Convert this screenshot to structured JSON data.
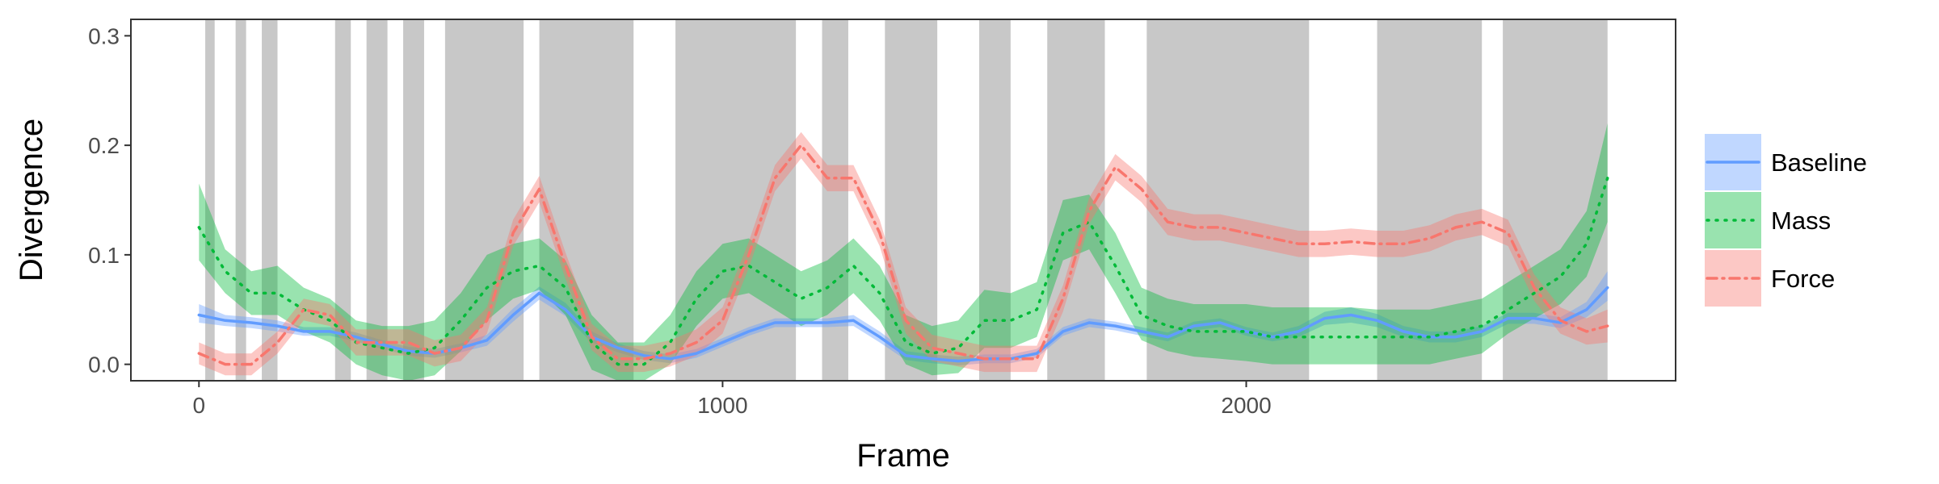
{
  "chart_data": {
    "type": "line",
    "xlabel": "Frame",
    "ylabel": "Divergence",
    "xlim": [
      -130,
      2820
    ],
    "ylim": [
      -0.015,
      0.315
    ],
    "x_ticks": [
      0,
      1000,
      2000
    ],
    "x_tick_labels": [
      "0",
      "1000",
      "2000"
    ],
    "y_ticks": [
      0.0,
      0.1,
      0.2,
      0.3
    ],
    "y_tick_labels": [
      "0.0",
      "0.1",
      "0.2",
      "0.3"
    ],
    "legend_position": "right",
    "shaded_regions": [
      [
        12,
        30
      ],
      [
        70,
        90
      ],
      [
        120,
        150
      ],
      [
        260,
        290
      ],
      [
        320,
        360
      ],
      [
        390,
        430
      ],
      [
        470,
        620
      ],
      [
        650,
        830
      ],
      [
        910,
        1140
      ],
      [
        1190,
        1240
      ],
      [
        1310,
        1410
      ],
      [
        1490,
        1550
      ],
      [
        1620,
        1730
      ],
      [
        1810,
        2120
      ],
      [
        2250,
        2450
      ],
      [
        2490,
        2690
      ]
    ],
    "series": [
      {
        "name": "Baseline",
        "color": "#619CFF",
        "dash": "solid",
        "x": [
          0,
          50,
          100,
          150,
          200,
          250,
          300,
          350,
          400,
          450,
          500,
          550,
          600,
          650,
          700,
          750,
          800,
          850,
          900,
          950,
          1000,
          1050,
          1100,
          1150,
          1200,
          1250,
          1300,
          1350,
          1400,
          1450,
          1500,
          1550,
          1600,
          1650,
          1700,
          1750,
          1800,
          1850,
          1900,
          1950,
          2000,
          2050,
          2100,
          2150,
          2200,
          2250,
          2300,
          2350,
          2400,
          2450,
          2500,
          2550,
          2600,
          2650,
          2690
        ],
        "y": [
          0.045,
          0.04,
          0.038,
          0.035,
          0.03,
          0.03,
          0.025,
          0.018,
          0.012,
          0.01,
          0.015,
          0.022,
          0.045,
          0.065,
          0.05,
          0.025,
          0.015,
          0.008,
          0.005,
          0.01,
          0.02,
          0.03,
          0.038,
          0.038,
          0.038,
          0.04,
          0.025,
          0.008,
          0.005,
          0.003,
          0.005,
          0.005,
          0.01,
          0.03,
          0.038,
          0.035,
          0.03,
          0.025,
          0.035,
          0.038,
          0.03,
          0.025,
          0.03,
          0.042,
          0.045,
          0.04,
          0.03,
          0.025,
          0.025,
          0.03,
          0.042,
          0.042,
          0.038,
          0.05,
          0.07
        ],
        "lower": [
          0.038,
          0.035,
          0.033,
          0.03,
          0.026,
          0.026,
          0.021,
          0.014,
          0.008,
          0.006,
          0.011,
          0.017,
          0.039,
          0.059,
          0.044,
          0.02,
          0.011,
          0.004,
          0.001,
          0.006,
          0.016,
          0.026,
          0.034,
          0.034,
          0.034,
          0.035,
          0.02,
          0.004,
          0.001,
          -0.001,
          0.001,
          0.001,
          0.006,
          0.026,
          0.034,
          0.031,
          0.026,
          0.021,
          0.031,
          0.034,
          0.026,
          0.021,
          0.025,
          0.036,
          0.038,
          0.034,
          0.025,
          0.02,
          0.02,
          0.025,
          0.037,
          0.037,
          0.033,
          0.043,
          0.058
        ],
        "upper": [
          0.055,
          0.045,
          0.043,
          0.04,
          0.034,
          0.034,
          0.029,
          0.022,
          0.016,
          0.014,
          0.019,
          0.027,
          0.051,
          0.071,
          0.056,
          0.03,
          0.019,
          0.012,
          0.009,
          0.014,
          0.024,
          0.034,
          0.042,
          0.042,
          0.042,
          0.045,
          0.03,
          0.012,
          0.009,
          0.007,
          0.009,
          0.009,
          0.014,
          0.034,
          0.042,
          0.039,
          0.034,
          0.029,
          0.039,
          0.042,
          0.034,
          0.029,
          0.035,
          0.048,
          0.052,
          0.046,
          0.035,
          0.03,
          0.03,
          0.035,
          0.047,
          0.047,
          0.043,
          0.057,
          0.085
        ]
      },
      {
        "name": "Mass",
        "color": "#00BA38",
        "dash": "dotted",
        "x": [
          0,
          50,
          100,
          150,
          200,
          250,
          300,
          350,
          400,
          450,
          500,
          550,
          600,
          650,
          700,
          750,
          800,
          850,
          900,
          950,
          1000,
          1050,
          1100,
          1150,
          1200,
          1250,
          1300,
          1350,
          1400,
          1450,
          1500,
          1550,
          1600,
          1650,
          1700,
          1750,
          1800,
          1850,
          1900,
          1950,
          2000,
          2050,
          2100,
          2150,
          2200,
          2250,
          2300,
          2350,
          2400,
          2450,
          2500,
          2550,
          2600,
          2650,
          2690
        ],
        "y": [
          0.125,
          0.085,
          0.065,
          0.065,
          0.05,
          0.04,
          0.02,
          0.015,
          0.01,
          0.015,
          0.04,
          0.07,
          0.085,
          0.09,
          0.07,
          0.02,
          0.0,
          0.0,
          0.02,
          0.06,
          0.085,
          0.09,
          0.075,
          0.06,
          0.07,
          0.09,
          0.065,
          0.02,
          0.01,
          0.015,
          0.04,
          0.04,
          0.05,
          0.12,
          0.13,
          0.09,
          0.045,
          0.035,
          0.03,
          0.03,
          0.03,
          0.025,
          0.025,
          0.025,
          0.025,
          0.025,
          0.025,
          0.025,
          0.03,
          0.035,
          0.05,
          0.065,
          0.08,
          0.11,
          0.17
        ],
        "lower": [
          0.095,
          0.065,
          0.045,
          0.045,
          0.03,
          0.02,
          0.0,
          -0.01,
          -0.015,
          -0.01,
          0.012,
          0.04,
          0.06,
          0.068,
          0.045,
          -0.005,
          -0.02,
          -0.02,
          0.0,
          0.035,
          0.06,
          0.065,
          0.05,
          0.035,
          0.045,
          0.065,
          0.04,
          0.0,
          -0.01,
          -0.008,
          0.015,
          0.015,
          0.025,
          0.095,
          0.105,
          0.065,
          0.022,
          0.012,
          0.007,
          0.005,
          0.003,
          0.0,
          0.0,
          0.0,
          0.0,
          0.0,
          0.0,
          0.0,
          0.005,
          0.01,
          0.028,
          0.042,
          0.055,
          0.08,
          0.13
        ],
        "upper": [
          0.165,
          0.105,
          0.085,
          0.09,
          0.07,
          0.06,
          0.04,
          0.035,
          0.035,
          0.04,
          0.065,
          0.1,
          0.11,
          0.115,
          0.095,
          0.045,
          0.02,
          0.02,
          0.045,
          0.085,
          0.11,
          0.115,
          0.1,
          0.085,
          0.095,
          0.115,
          0.09,
          0.045,
          0.035,
          0.04,
          0.068,
          0.065,
          0.075,
          0.15,
          0.155,
          0.12,
          0.07,
          0.06,
          0.055,
          0.055,
          0.055,
          0.052,
          0.052,
          0.052,
          0.052,
          0.05,
          0.05,
          0.05,
          0.055,
          0.06,
          0.075,
          0.09,
          0.105,
          0.14,
          0.22
        ]
      },
      {
        "name": "Force",
        "color": "#F8766D",
        "dash": "dashdot",
        "x": [
          0,
          50,
          100,
          150,
          200,
          250,
          300,
          350,
          400,
          450,
          500,
          550,
          600,
          650,
          700,
          750,
          800,
          850,
          900,
          950,
          1000,
          1050,
          1100,
          1150,
          1200,
          1250,
          1300,
          1350,
          1400,
          1450,
          1500,
          1550,
          1600,
          1650,
          1700,
          1750,
          1800,
          1850,
          1900,
          1950,
          2000,
          2050,
          2100,
          2150,
          2200,
          2250,
          2300,
          2350,
          2400,
          2450,
          2500,
          2550,
          2600,
          2650,
          2690
        ],
        "y": [
          0.01,
          0.0,
          0.0,
          0.02,
          0.05,
          0.045,
          0.02,
          0.02,
          0.02,
          0.01,
          0.015,
          0.04,
          0.12,
          0.16,
          0.09,
          0.025,
          0.005,
          0.005,
          0.01,
          0.02,
          0.04,
          0.1,
          0.17,
          0.2,
          0.17,
          0.17,
          0.12,
          0.04,
          0.015,
          0.01,
          0.005,
          0.005,
          0.005,
          0.06,
          0.14,
          0.18,
          0.16,
          0.13,
          0.125,
          0.125,
          0.12,
          0.115,
          0.11,
          0.11,
          0.112,
          0.11,
          0.11,
          0.115,
          0.125,
          0.13,
          0.12,
          0.07,
          0.04,
          0.03,
          0.035
        ],
        "lower": [
          0.0,
          -0.01,
          -0.01,
          0.01,
          0.04,
          0.035,
          0.008,
          0.008,
          0.008,
          -0.002,
          0.003,
          0.028,
          0.108,
          0.148,
          0.078,
          0.013,
          -0.007,
          -0.007,
          -0.002,
          0.008,
          0.028,
          0.088,
          0.158,
          0.188,
          0.158,
          0.158,
          0.108,
          0.028,
          0.003,
          -0.002,
          -0.007,
          -0.007,
          -0.007,
          0.048,
          0.128,
          0.168,
          0.148,
          0.118,
          0.113,
          0.113,
          0.108,
          0.103,
          0.098,
          0.098,
          0.1,
          0.098,
          0.098,
          0.103,
          0.113,
          0.118,
          0.108,
          0.058,
          0.028,
          0.018,
          0.02
        ],
        "upper": [
          0.02,
          0.01,
          0.01,
          0.03,
          0.06,
          0.055,
          0.032,
          0.032,
          0.032,
          0.022,
          0.027,
          0.052,
          0.132,
          0.172,
          0.102,
          0.037,
          0.017,
          0.017,
          0.022,
          0.032,
          0.052,
          0.112,
          0.182,
          0.212,
          0.182,
          0.182,
          0.132,
          0.052,
          0.027,
          0.022,
          0.017,
          0.017,
          0.017,
          0.072,
          0.152,
          0.192,
          0.172,
          0.142,
          0.137,
          0.137,
          0.132,
          0.127,
          0.122,
          0.122,
          0.124,
          0.122,
          0.122,
          0.127,
          0.137,
          0.142,
          0.132,
          0.082,
          0.052,
          0.042,
          0.05
        ]
      }
    ]
  }
}
